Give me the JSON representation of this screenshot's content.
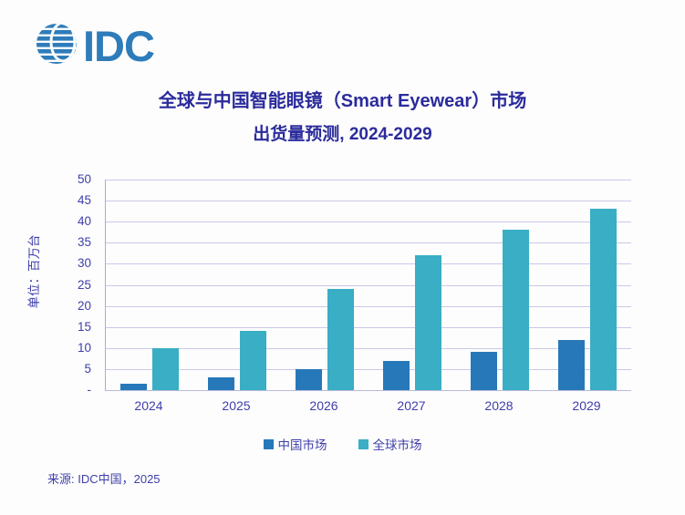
{
  "logo": {
    "text": "IDC",
    "color": "#2e7cba",
    "globe_icon": "striped-globe-icon"
  },
  "title": {
    "line1": "全球与中国智能眼镜（Smart Eyewear）市场",
    "line2": "出货量预测, 2024-2029",
    "color": "#2b2b9c"
  },
  "chart_data": {
    "type": "bar",
    "categories": [
      "2024",
      "2025",
      "2026",
      "2027",
      "2028",
      "2029"
    ],
    "series": [
      {
        "name": "中国市场",
        "color": "#2778b9",
        "values": [
          1.5,
          3,
          5,
          7,
          9,
          12
        ]
      },
      {
        "name": "全球市场",
        "color": "#39aec5",
        "values": [
          10,
          14,
          24,
          32,
          38,
          43
        ]
      }
    ],
    "title": "全球与中国智能眼镜（Smart Eyewear）市场 出货量预测, 2024-2029",
    "xlabel": "",
    "ylabel": "单位：百万台",
    "ylim": [
      0,
      50
    ],
    "ytick_step": 5,
    "zero_tick_label": "-",
    "grid": true,
    "legend_position": "bottom",
    "gridline_color": "#c9c9ea",
    "axis_text_color": "#3e3eac"
  },
  "footer": {
    "source": "来源: IDC中国，2025"
  }
}
